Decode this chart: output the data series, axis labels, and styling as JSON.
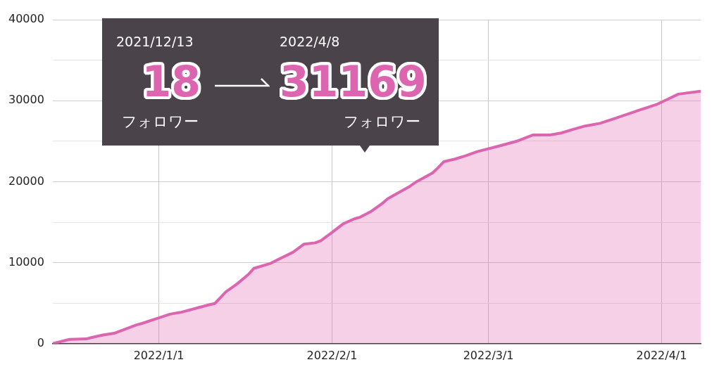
{
  "chart_data": {
    "type": "area",
    "x": [
      "2021-12-13",
      "2021-12-16",
      "2021-12-19",
      "2021-12-20",
      "2021-12-22",
      "2021-12-24",
      "2021-12-28",
      "2021-12-29",
      "2022-01-01",
      "2022-01-03",
      "2022-01-05",
      "2022-01-08",
      "2022-01-10",
      "2022-01-11",
      "2022-01-13",
      "2022-01-15",
      "2022-01-17",
      "2022-01-18",
      "2022-01-21",
      "2022-01-22",
      "2022-01-25",
      "2022-01-27",
      "2022-01-29",
      "2022-01-30",
      "2022-02-01",
      "2022-02-03",
      "2022-02-05",
      "2022-02-06",
      "2022-02-08",
      "2022-02-10",
      "2022-02-11",
      "2022-02-15",
      "2022-02-16",
      "2022-02-19",
      "2022-02-20",
      "2022-02-21",
      "2022-02-23",
      "2022-02-25",
      "2022-02-27",
      "2022-03-03",
      "2022-03-06",
      "2022-03-09",
      "2022-03-12",
      "2022-03-14",
      "2022-03-16",
      "2022-03-18",
      "2022-03-21",
      "2022-03-23",
      "2022-03-26",
      "2022-03-28",
      "2022-03-31",
      "2022-04-02",
      "2022-04-04",
      "2022-04-08"
    ],
    "series": [
      {
        "color": "#dd64ae",
        "values": [
          18,
          520,
          580,
          760,
          1070,
          1280,
          2320,
          2500,
          3180,
          3640,
          3880,
          4430,
          4800,
          4950,
          6390,
          7370,
          8530,
          9290,
          9910,
          10270,
          11280,
          12290,
          12450,
          12720,
          13730,
          14800,
          15410,
          15600,
          16330,
          17310,
          17900,
          19450,
          19940,
          21080,
          21740,
          22460,
          22790,
          23210,
          23710,
          24420,
          24980,
          25770,
          25770,
          26000,
          26420,
          26820,
          27210,
          27670,
          28360,
          28840,
          29500,
          30150,
          30810,
          31169
        ]
      }
    ],
    "xlim": [
      "2021-12-13",
      "2022-04-08"
    ],
    "xticks": [
      {
        "value": "2022-01-01",
        "label": "2022/1/1"
      },
      {
        "value": "2022-02-01",
        "label": "2022/2/1"
      },
      {
        "value": "2022-03-01",
        "label": "2022/3/1"
      },
      {
        "value": "2022-04-01",
        "label": "2022/4/1"
      }
    ],
    "ylim": [
      0,
      40000
    ],
    "yticks": [
      0,
      {
        "value": 5000,
        "label": null
      },
      10000,
      {
        "value": 15000,
        "label": null
      },
      20000,
      {
        "value": 25000,
        "label": null
      },
      30000,
      {
        "value": 35000,
        "label": null
      },
      40000
    ],
    "grid": true,
    "legend": false,
    "marker": "none",
    "line_style": "solid",
    "annotations": [
      "2021/12/13",
      "18",
      "フォロワー",
      "2022/4/8",
      "31169",
      "フォロワー"
    ]
  }
}
